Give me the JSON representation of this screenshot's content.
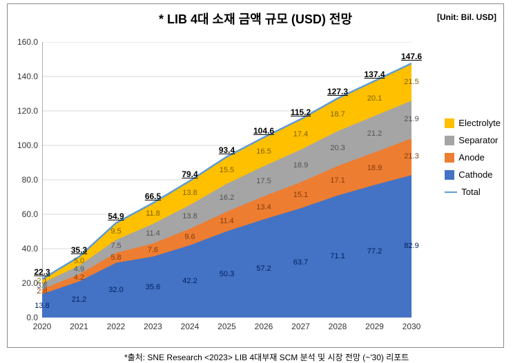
{
  "title": "* LIB 4대 소재 금액 규모 (USD) 전망",
  "unit_label": "[Unit: Bil. USD]",
  "footnote": "*출처:   SNE Research <2023> LIB 4대부재 SCM 분석 및 시장 전망 (~'30) 리포트",
  "chart": {
    "type": "stacked_area_with_total_line",
    "ymin": 0,
    "ymax": 160,
    "ytick_step": 20,
    "categories": [
      "2020",
      "2021",
      "2022",
      "2023",
      "2024",
      "2025",
      "2026",
      "2027",
      "2028",
      "2029",
      "2030"
    ],
    "series": [
      {
        "key": "cathode",
        "label": "Cathode",
        "color": "#4472c4",
        "values": [
          13.8,
          21.2,
          32.0,
          35.6,
          42.2,
          50.3,
          57.2,
          63.7,
          71.1,
          77.2,
          82.9
        ],
        "text_color": "#002060"
      },
      {
        "key": "anode",
        "label": "Anode",
        "color": "#ed7d31",
        "values": [
          2.8,
          4.2,
          5.8,
          7.6,
          9.6,
          11.4,
          13.4,
          15.1,
          17.1,
          18.9,
          21.3
        ],
        "text_color": "#833c0c"
      },
      {
        "key": "separator",
        "label": "Separator",
        "color": "#a5a5a5",
        "values": [
          3.6,
          4.9,
          7.5,
          11.4,
          13.8,
          16.2,
          17.5,
          18.9,
          20.3,
          21.2,
          21.9
        ],
        "text_color": "#525252"
      },
      {
        "key": "electrolyte",
        "label": "Electrolyte",
        "color": "#ffc000",
        "values": [
          2.1,
          5.0,
          9.5,
          11.8,
          13.8,
          15.5,
          16.5,
          17.4,
          18.7,
          20.1,
          21.5
        ],
        "text_color": "#806000"
      }
    ],
    "total": {
      "label": "Total",
      "color": "#5b9bd5",
      "values": [
        22.3,
        35.3,
        54.9,
        66.5,
        79.4,
        93.4,
        104.6,
        115.2,
        127.3,
        137.4,
        147.6
      ]
    },
    "grid_color": "#d9d9d9",
    "axis_color": "#595959",
    "tick_font_size": 12,
    "label_font_size": 11,
    "total_label_font_size": 12,
    "background": "#ffffff"
  },
  "legend_order": [
    "electrolyte",
    "separator",
    "anode",
    "cathode",
    "total"
  ]
}
